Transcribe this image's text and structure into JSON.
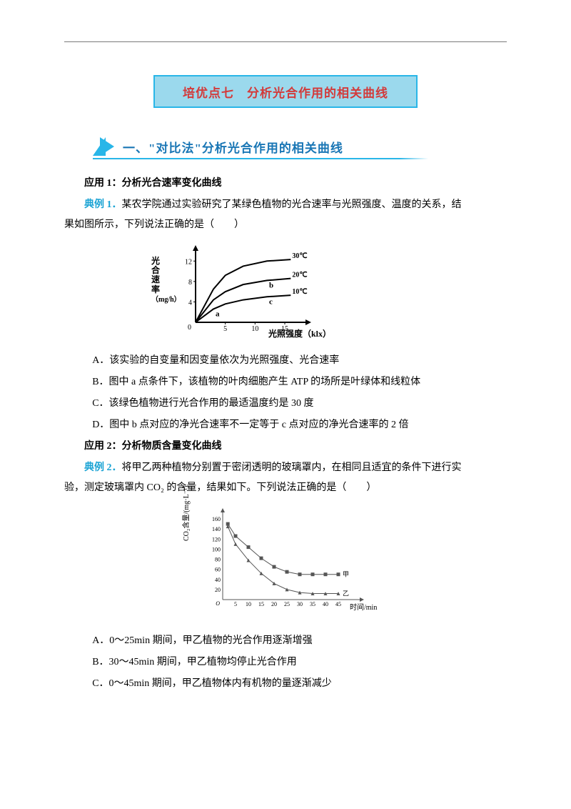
{
  "page": {
    "title": "培优点七　分析光合作用的相关曲线",
    "section1": "一、\"对比法\"分析光合作用的相关曲线"
  },
  "app1": {
    "heading": "应用 1：分析光合速率变化曲线",
    "dianli_label": "典例 1．",
    "stem1": "某农学院通过实验研究了某绿色植物的光合速率与光照强度、温度的关系，结",
    "stem2": "果如图所示，下列说法正确的是（　　）",
    "optA": "A．该实验的自变量和因变量依次为光照强度、光合速率",
    "optB": "B．图中 a 点条件下，该植物的叶肉细胞产生 ATP 的场所是叶绿体和线粒体",
    "optC": "C．该绿色植物进行光合作用的最适温度约是 30 度",
    "optD": "D．图中 b 点对应的净光合速率不一定等于 c 点对应的净光合速率的 2 倍"
  },
  "chart1": {
    "ylabel_main": "光合速率",
    "ylabel_unit": "（mg/h）",
    "xlabel": "光照强度（klx）",
    "xticks": [
      "5",
      "10",
      "15"
    ],
    "yticks": [
      "4",
      "8",
      "12"
    ],
    "line_labels": {
      "30": "30℃",
      "20": "20℃",
      "10": "10℃"
    },
    "point_labels": {
      "a": "a",
      "b": "b",
      "c": "c"
    },
    "axis_color": "#000000",
    "line_color": "#000000",
    "line_width": 2,
    "x_range": [
      0,
      18
    ],
    "y_range": [
      0,
      14
    ],
    "curves": {
      "30": [
        [
          0,
          0
        ],
        [
          3,
          6.5
        ],
        [
          5,
          9.2
        ],
        [
          8,
          11
        ],
        [
          12,
          12
        ],
        [
          16,
          12.3
        ]
      ],
      "20": [
        [
          0,
          0
        ],
        [
          3,
          4.4
        ],
        [
          5,
          6
        ],
        [
          8,
          7.4
        ],
        [
          12,
          8.2
        ],
        [
          16,
          8.6
        ]
      ],
      "10": [
        [
          0,
          0
        ],
        [
          3,
          2.6
        ],
        [
          5,
          3.6
        ],
        [
          8,
          4.4
        ],
        [
          12,
          5.0
        ],
        [
          16,
          5.3
        ]
      ]
    },
    "points": {
      "a": [
        3,
        2.6
      ],
      "b": [
        12,
        8.2
      ],
      "c": [
        12,
        5.0
      ]
    }
  },
  "app2": {
    "heading": "应用 2：分析物质含量变化曲线",
    "dianli_label": "典例 2．",
    "stem1": "将甲乙两种植物分别置于密闭透明的玻璃罩内，在相同且适宜的条件下进行实",
    "stem2": "验，测定玻璃罩内 CO₂ 的含量，结果如下。下列说法正确的是（　　）",
    "optA": "A．0～25min 期间，甲乙植物的光合作用逐渐增强",
    "optB": "B．30～45min 期间，甲乙植物均停止光合作用",
    "optC": "C．0～45min 期间，甲乙植物体内有机物的量逐渐减少"
  },
  "chart2": {
    "ylabel": "CO₂含量/(mg·L⁻¹)",
    "xlabel": "时间/min",
    "xticks": [
      "5",
      "10",
      "15",
      "20",
      "25",
      "30",
      "35",
      "40",
      "45"
    ],
    "yticks": [
      "20",
      "40",
      "60",
      "80",
      "100",
      "120",
      "140",
      "160"
    ],
    "series_labels": {
      "jia": "甲",
      "yi": "乙"
    },
    "axis_color": "#555555",
    "line_color": "#555555",
    "marker_fill": "#555555",
    "marker_size": 2.5,
    "x_range": [
      0,
      50
    ],
    "y_range": [
      0,
      170
    ],
    "curves": {
      "jia": [
        [
          2,
          150
        ],
        [
          5,
          126
        ],
        [
          10,
          104
        ],
        [
          15,
          82
        ],
        [
          20,
          65
        ],
        [
          25,
          55
        ],
        [
          30,
          50
        ],
        [
          35,
          50
        ],
        [
          40,
          50
        ],
        [
          45,
          50
        ]
      ],
      "yi": [
        [
          2,
          145
        ],
        [
          5,
          110
        ],
        [
          10,
          78
        ],
        [
          15,
          52
        ],
        [
          20,
          32
        ],
        [
          25,
          20
        ],
        [
          30,
          14
        ],
        [
          35,
          12
        ],
        [
          40,
          12
        ],
        [
          45,
          12
        ]
      ]
    }
  }
}
